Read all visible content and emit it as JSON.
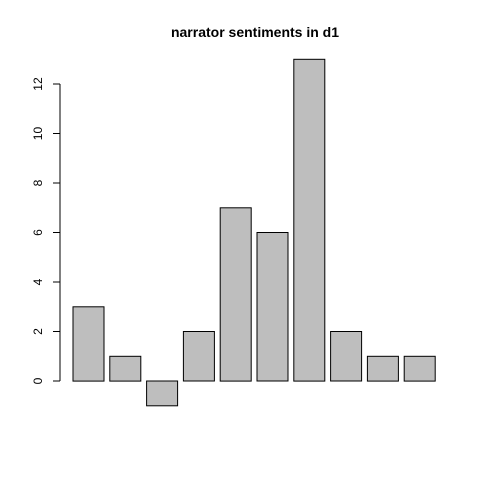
{
  "chart_data": {
    "type": "bar",
    "title": "narrator sentiments in d1",
    "xlabel": "",
    "ylabel": "",
    "values": [
      3,
      1,
      -1,
      2,
      7,
      6,
      13,
      2,
      1,
      1
    ],
    "ylim": [
      -1,
      13
    ],
    "yticks": [
      0,
      2,
      4,
      6,
      8,
      10,
      12
    ],
    "ytick_labels": [
      "0",
      "2",
      "4",
      "6",
      "8",
      "10",
      "12"
    ],
    "grid": false,
    "bar_fill": "#bebebe",
    "bar_stroke": "#000000"
  }
}
